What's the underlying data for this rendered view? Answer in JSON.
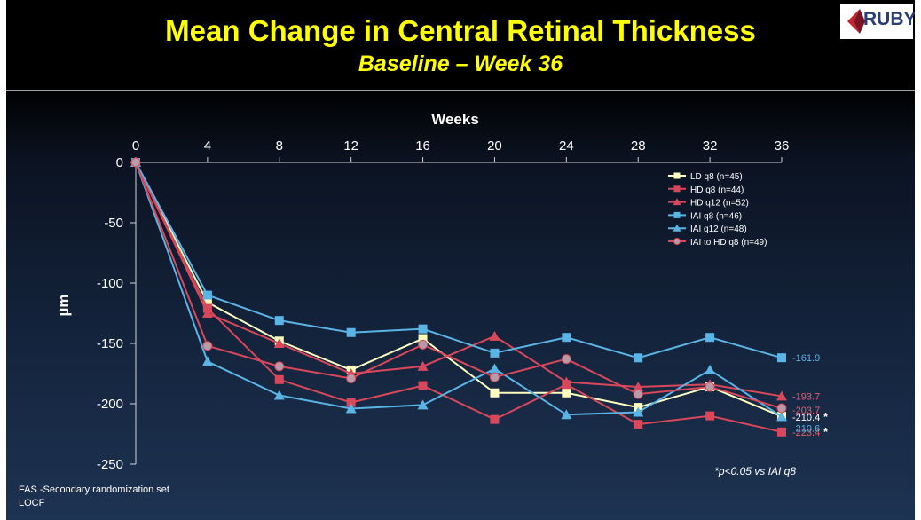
{
  "header": {
    "title": "Mean Change in Central Retinal Thickness",
    "subtitle": "Baseline – Week 36",
    "logo_text": "RUBY"
  },
  "footnote": "*p<0.05 vs IAI q8",
  "footer": {
    "line1": "FAS -Secondary randomization set",
    "line2": "LOCF"
  },
  "chart_data": {
    "type": "line",
    "title": "",
    "xlabel": "Weeks",
    "ylabel": "µm",
    "x_axis_position": "top",
    "x": [
      0,
      4,
      8,
      12,
      16,
      20,
      24,
      28,
      32,
      36
    ],
    "xticks": [
      "0",
      "4",
      "8",
      "12",
      "16",
      "20",
      "24",
      "28",
      "32",
      "36"
    ],
    "yticks": [
      "0",
      "-50",
      "-100",
      "-150",
      "-200",
      "-250"
    ],
    "xlim": [
      0,
      36
    ],
    "ylim": [
      -250,
      0
    ],
    "grid": false,
    "legend_position": "top-right",
    "series": [
      {
        "name": "LD q8 (n=45)",
        "color": "#ffffc0",
        "marker": "square",
        "values": [
          0,
          -116,
          -148,
          -172,
          -146,
          -191,
          -191,
          -203,
          -186,
          -210.4
        ],
        "end_label": "-210.4",
        "end_label_color": "#ffffff",
        "significant": true
      },
      {
        "name": "HD q8 (n=44)",
        "color": "#d9485a",
        "marker": "square",
        "values": [
          0,
          -121,
          -180,
          -199,
          -185,
          -213,
          -184,
          -217,
          -210,
          -223.4
        ],
        "end_label": "-223.4",
        "end_label_color": "#e65c6a",
        "significant": true
      },
      {
        "name": "HD q12 (n=52)",
        "color": "#d9485a",
        "marker": "triangle",
        "values": [
          0,
          -125,
          -150,
          -175,
          -169,
          -144,
          -182,
          -186,
          -184,
          -193.7
        ],
        "end_label": "-193.7",
        "end_label_color": "#e65c6a",
        "significant": false
      },
      {
        "name": "IAI q8 (n=46)",
        "color": "#5ab4e6",
        "marker": "square",
        "values": [
          0,
          -110,
          -131,
          -141,
          -138,
          -158,
          -145,
          -162,
          -145,
          -161.9
        ],
        "end_label": "-161.9",
        "end_label_color": "#5ab4e6",
        "significant": false
      },
      {
        "name": "IAI q12 (n=48)",
        "color": "#5ab4e6",
        "marker": "triangle",
        "values": [
          0,
          -165,
          -193,
          -204,
          -201,
          -171,
          -209,
          -207,
          -172,
          -210.6
        ],
        "end_label": "-210.6",
        "end_label_color": "#5ab4e6",
        "significant": false
      },
      {
        "name": "IAI to HD q8 (n=49)",
        "color": "#d9485a",
        "marker": "circle",
        "marker_fill": "#b89aa8",
        "values": [
          0,
          -152,
          -169,
          -179,
          -151,
          -178,
          -163,
          -192,
          -186,
          -203.7
        ],
        "end_label": "-203.7",
        "end_label_color": "#e65c6a",
        "significant": false
      }
    ],
    "significance_marker": "*"
  }
}
